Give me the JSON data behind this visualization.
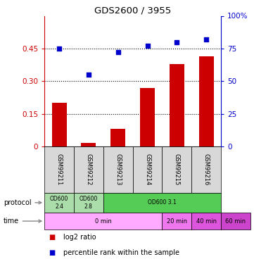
{
  "title": "GDS2600 / 3955",
  "samples": [
    "GSM99211",
    "GSM99212",
    "GSM99213",
    "GSM99214",
    "GSM99215",
    "GSM99216"
  ],
  "log2_ratio": [
    0.2,
    0.015,
    0.08,
    0.27,
    0.38,
    0.415
  ],
  "percentile_rank": [
    75,
    55,
    72,
    77,
    80,
    82
  ],
  "bar_color": "#cc0000",
  "scatter_color": "#0000cc",
  "ylim_left": [
    0,
    0.6
  ],
  "ylim_right": [
    0,
    100
  ],
  "yticks_left": [
    0,
    0.15,
    0.3,
    0.45
  ],
  "yticks_right": [
    0,
    25,
    50,
    75,
    100
  ],
  "ytick_labels_left": [
    "0",
    "0.15",
    "0.30",
    "0.45"
  ],
  "ytick_labels_right": [
    "0",
    "25",
    "50",
    "75",
    "100%"
  ],
  "hlines": [
    0.15,
    0.3,
    0.45
  ],
  "left_axis_color": "#cc0000",
  "right_axis_color": "#0000cc",
  "gsm_bg_color": "#d8d8d8",
  "protocol_data": [
    {
      "label": "OD600\n2.4",
      "start": 0,
      "end": 1,
      "color": "#aaddaa"
    },
    {
      "label": "OD600\n2.8",
      "start": 1,
      "end": 2,
      "color": "#aaddaa"
    },
    {
      "label": "OD600 3.1",
      "start": 2,
      "end": 6,
      "color": "#55cc55"
    }
  ],
  "time_data": [
    {
      "label": "0 min",
      "start": 0,
      "end": 4,
      "color": "#ffaaff"
    },
    {
      "label": "20 min",
      "start": 4,
      "end": 5,
      "color": "#ee77ee"
    },
    {
      "label": "40 min",
      "start": 5,
      "end": 6,
      "color": "#dd55dd"
    },
    {
      "label": "60 min",
      "start": 6,
      "end": 6,
      "color": "#cc44cc"
    }
  ],
  "legend_items": [
    "log2 ratio",
    "percentile rank within the sample"
  ],
  "legend_colors": [
    "#cc0000",
    "#0000cc"
  ]
}
